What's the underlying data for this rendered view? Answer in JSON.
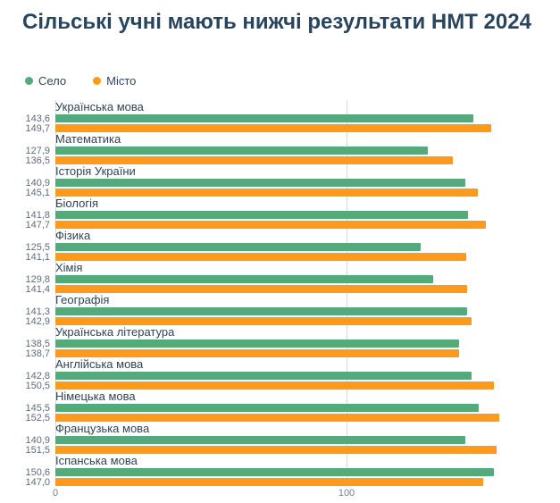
{
  "title": "Сільські учні мають нижчі результати НМТ 2024",
  "legend": [
    {
      "label": "Село",
      "color": "#55a97d"
    },
    {
      "label": "Місто",
      "color": "#fc9a1d"
    }
  ],
  "chart_data": {
    "type": "bar",
    "orientation": "horizontal",
    "title": "Сільські учні мають нижчі результати НМТ 2024",
    "categories": [
      "Українська мова",
      "Математика",
      "Історія України",
      "Біологія",
      "Фізика",
      "Хімія",
      "Географія",
      "Українська література",
      "Англійська мова",
      "Німецька мова",
      "Французька мова",
      "Іспанська мова"
    ],
    "series": [
      {
        "name": "Село",
        "color": "#55a97d",
        "values": [
          143.6,
          127.9,
          140.9,
          141.8,
          125.5,
          129.8,
          141.3,
          138.5,
          142.8,
          145.5,
          140.9,
          150.6
        ]
      },
      {
        "name": "Місто",
        "color": "#fc9a1d",
        "values": [
          149.7,
          136.5,
          145.1,
          147.7,
          141.1,
          141.4,
          142.9,
          138.7,
          150.5,
          152.5,
          151.5,
          147.0
        ]
      }
    ],
    "rows": [
      {
        "label": "Українська мова",
        "selo": "143,6",
        "misto": "149,7"
      },
      {
        "label": "Математика",
        "selo": "127,9",
        "misto": "136,5"
      },
      {
        "label": "Історія України",
        "selo": "140,9",
        "misto": "145,1"
      },
      {
        "label": "Біологія",
        "selo": "141,8",
        "misto": "147,7"
      },
      {
        "label": "Фізика",
        "selo": "125,5",
        "misto": "141,1"
      },
      {
        "label": "Хімія",
        "selo": "129,8",
        "misto": "141,4"
      },
      {
        "label": "Географія",
        "selo": "141,3",
        "misto": "142,9"
      },
      {
        "label": "Українська література",
        "selo": "138,5",
        "misto": "138,7"
      },
      {
        "label": "Англійська мова",
        "selo": "142,8",
        "misto": "150,5"
      },
      {
        "label": "Німецька мова",
        "selo": "145,5",
        "misto": "152,5"
      },
      {
        "label": "Французька мова",
        "selo": "140,9",
        "misto": "151,5"
      },
      {
        "label": "Іспанська мова",
        "selo": "150,6",
        "misto": "147,0"
      }
    ],
    "x_axis": {
      "ticks": [
        "0",
        "100"
      ],
      "tick_values": [
        0,
        100
      ],
      "range": [
        0,
        171
      ]
    },
    "grid": true,
    "legend_position": "top-left"
  }
}
